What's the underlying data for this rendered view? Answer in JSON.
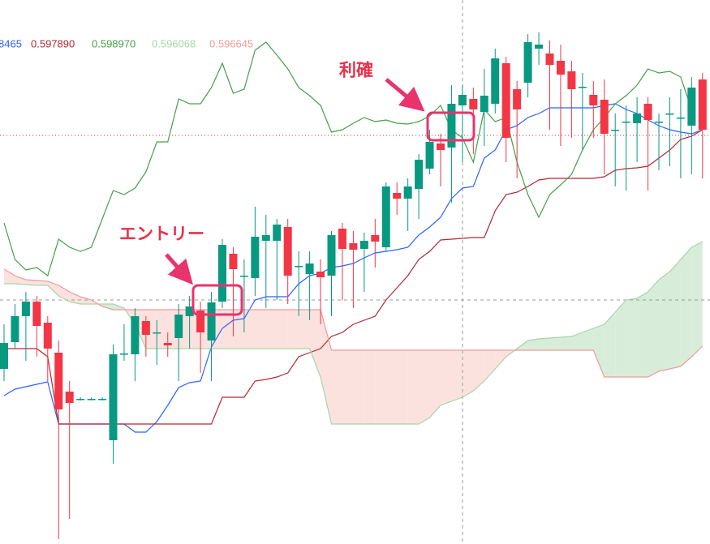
{
  "chart_data": {
    "type": "candlestick",
    "ylim": [
      0.59329,
      0.6
    ],
    "up_color": "#089981",
    "down_color": "#f23645",
    "open": [
      0.59545,
      0.59578,
      0.5961,
      0.59628,
      0.59602,
      0.59565,
      0.59517,
      0.59508,
      0.59508,
      0.59508,
      0.59457,
      0.59564,
      0.59563,
      0.59604,
      0.5959,
      0.59577,
      0.59583,
      0.5961,
      0.59617,
      0.5958,
      0.59628,
      0.59687,
      0.5966,
      0.59657,
      0.59703,
      0.59703,
      0.5972,
      0.59672,
      0.59662,
      0.59665,
      0.5966,
      0.59718,
      0.597,
      0.59693,
      0.5971,
      0.59695,
      0.59762,
      0.59755,
      0.59767,
      0.59792,
      0.59823,
      0.59818,
      0.5987,
      0.59878,
      0.59862,
      0.59872,
      0.59922,
      0.5989,
      0.59898,
      0.5994,
      0.59934,
      0.59925,
      0.59912,
      0.59893,
      0.59883,
      0.59877,
      0.5984,
      0.5985,
      0.59848,
      0.59872,
      0.5985,
      0.5986,
      0.59855,
      0.59845,
      0.59902
    ],
    "high": [
      0.596,
      0.59625,
      0.5964,
      0.59635,
      0.5961,
      0.5958,
      0.5953,
      0.5951,
      0.5951,
      0.5951,
      0.59575,
      0.596,
      0.5962,
      0.5961,
      0.59605,
      0.5959,
      0.59625,
      0.59635,
      0.59628,
      0.5964,
      0.59705,
      0.59695,
      0.5968,
      0.59745,
      0.59735,
      0.5973,
      0.5973,
      0.5969,
      0.5969,
      0.5968,
      0.59715,
      0.59725,
      0.59715,
      0.59713,
      0.5973,
      0.59775,
      0.59775,
      0.5978,
      0.5981,
      0.5984,
      0.59835,
      0.59895,
      0.59895,
      0.59892,
      0.59915,
      0.5994,
      0.5993,
      0.599,
      0.59958,
      0.5996,
      0.5995,
      0.59945,
      0.59925,
      0.5991,
      0.599,
      0.59902,
      0.5986,
      0.5987,
      0.5988,
      0.5988,
      0.5986,
      0.5988,
      0.5989,
      0.59905,
      0.5991
    ],
    "low": [
      0.5953,
      0.5957,
      0.59555,
      0.5956,
      0.5953,
      0.59335,
      0.5936,
      0.59506,
      0.59506,
      0.59506,
      0.59428,
      0.59555,
      0.5953,
      0.5956,
      0.5955,
      0.5956,
      0.5953,
      0.5957,
      0.5954,
      0.5953,
      0.5962,
      0.59585,
      0.5959,
      0.59635,
      0.5962,
      0.5963,
      0.59625,
      0.5961,
      0.59605,
      0.596,
      0.5961,
      0.5963,
      0.5962,
      0.5964,
      0.5967,
      0.5969,
      0.59735,
      0.59715,
      0.5973,
      0.59785,
      0.5977,
      0.5975,
      0.598,
      0.5981,
      0.5982,
      0.5986,
      0.598,
      0.5978,
      0.5988,
      0.5992,
      0.5984,
      0.5982,
      0.5983,
      0.59815,
      0.5983,
      0.59785,
      0.5977,
      0.59765,
      0.598,
      0.59765,
      0.5979,
      0.59795,
      0.5978,
      0.59785,
      0.5978
    ],
    "close": [
      0.59577,
      0.5961,
      0.59628,
      0.59598,
      0.5957,
      0.59495,
      0.59503,
      0.59508,
      0.59508,
      0.59508,
      0.59563,
      0.59564,
      0.5961,
      0.59587,
      0.5959,
      0.59574,
      0.59612,
      0.59622,
      0.5959,
      0.59627,
      0.59698,
      0.59668,
      0.5966,
      0.59708,
      0.5971,
      0.59723,
      0.5966,
      0.59672,
      0.59675,
      0.59658,
      0.5971,
      0.59693,
      0.59692,
      0.59703,
      0.59702,
      0.5977,
      0.59755,
      0.5977,
      0.59803,
      0.59825,
      0.59815,
      0.59872,
      0.59883,
      0.59865,
      0.59882,
      0.59928,
      0.5983,
      0.59865,
      0.59948,
      0.59945,
      0.5992,
      0.59908,
      0.5989,
      0.59893,
      0.5987,
      0.59835,
      0.5984,
      0.5985,
      0.5986,
      0.59852,
      0.5985,
      0.5986,
      0.59855,
      0.59892,
      0.5984
    ],
    "price_line": 0.59833,
    "price_line_color": "#d32f2f",
    "series": [
      {
        "label": "8465",
        "color": "#2962ff",
        "values": [
          0.59512,
          0.5952,
          0.59523,
          0.59526,
          0.59529,
          0.59477,
          0.59477,
          0.59477,
          0.59477,
          0.59477,
          0.59477,
          0.59477,
          0.59467,
          0.59467,
          0.5948,
          0.595,
          0.59522,
          0.59528,
          0.5953,
          0.59572,
          0.59595,
          0.59605,
          0.59607,
          0.5963,
          0.59634,
          0.59634,
          0.59634,
          0.5965,
          0.5966,
          0.59663,
          0.5967,
          0.59672,
          0.59675,
          0.59682,
          0.59688,
          0.5969,
          0.59692,
          0.59695,
          0.5971,
          0.5972,
          0.59732,
          0.59755,
          0.59768,
          0.5977,
          0.59805,
          0.59815,
          0.5984,
          0.59845,
          0.59855,
          0.5986,
          0.59867,
          0.59867,
          0.59867,
          0.59867,
          0.59867,
          0.5987,
          0.59872,
          0.59865,
          0.5986,
          0.59852,
          0.59845,
          0.5984,
          0.59837,
          0.59835,
          0.5984
        ]
      },
      {
        "label": "0.597890",
        "color": "#b22833",
        "values": [
          0.5957,
          0.5957,
          0.5957,
          0.5957,
          0.5956,
          0.59477,
          0.59477,
          0.59477,
          0.59477,
          0.59477,
          0.59477,
          0.59477,
          0.59477,
          0.59477,
          0.59477,
          0.59477,
          0.59477,
          0.59477,
          0.59477,
          0.59477,
          0.5951,
          0.5951,
          0.5951,
          0.5953,
          0.59532,
          0.59535,
          0.5954,
          0.5956,
          0.59565,
          0.5957,
          0.59585,
          0.5959,
          0.596,
          0.59605,
          0.5961,
          0.5963,
          0.59645,
          0.5966,
          0.5968,
          0.5969,
          0.59704,
          0.59705,
          0.59706,
          0.59707,
          0.59707,
          0.5974,
          0.5976,
          0.59763,
          0.5977,
          0.59778,
          0.5978,
          0.5978,
          0.5978,
          0.5978,
          0.5978,
          0.59782,
          0.5979,
          0.59792,
          0.59793,
          0.59795,
          0.59805,
          0.59815,
          0.59828,
          0.59832,
          0.5984
        ]
      },
      {
        "label": "0.598970",
        "color": "#43a047",
        "values": [
          0.59725,
          0.5968,
          0.59667,
          0.5967,
          0.5966,
          0.59705,
          0.59695,
          0.5969,
          0.59695,
          0.5973,
          0.59765,
          0.5976,
          0.59768,
          0.59788,
          0.59825,
          0.59825,
          0.59878,
          0.59872,
          0.59872,
          0.59892,
          0.59922,
          0.59885,
          0.5989,
          0.59938,
          0.59948,
          0.59932,
          0.59915,
          0.59892,
          0.59882,
          0.5987,
          0.59837,
          0.5984,
          0.59848,
          0.59855,
          0.5985,
          0.59852,
          0.59848,
          0.59847,
          0.5985,
          0.59857,
          0.5987,
          0.5984,
          0.5983,
          0.598,
          0.59865,
          0.5985,
          0.59855,
          0.598,
          0.5976,
          0.59732,
          0.5976,
          0.59772,
          0.59785,
          0.59815,
          0.5984,
          0.59855,
          0.59872,
          0.59882,
          0.59895,
          0.59915,
          0.5991,
          0.59912,
          0.59905,
          0.59865,
          null
        ]
      },
      {
        "label": "0.596068",
        "color": "#a5d6a7",
        "values": [
          0.5965,
          0.5965,
          0.59649,
          0.59648,
          0.59648,
          0.59635,
          0.59628,
          0.59625,
          0.59625,
          0.59625,
          0.59625,
          0.5962,
          0.596,
          0.5957,
          0.5957,
          0.5957,
          0.5957,
          0.5957,
          0.5957,
          0.5957,
          0.5957,
          0.5957,
          0.5957,
          0.5957,
          0.5957,
          0.5957,
          0.5957,
          0.5957,
          0.5957,
          0.59535,
          0.59477,
          0.59477,
          0.59477,
          0.59477,
          0.59477,
          0.59477,
          0.59477,
          0.59477,
          0.59477,
          0.59485,
          0.595,
          0.59505,
          0.5951,
          0.59518,
          0.5953,
          0.59545,
          0.5956,
          0.5957,
          0.5958,
          0.59582,
          0.59583,
          0.59584,
          0.59585,
          0.5959,
          0.59595,
          0.596,
          0.59615,
          0.5963,
          0.59632,
          0.5964,
          0.59655,
          0.59665,
          0.5968,
          0.59695,
          0.59702
        ]
      },
      {
        "label": "0.596645",
        "color": "#ef9a9a",
        "values": [
          0.59668,
          0.5966,
          0.59655,
          0.59654,
          0.59653,
          0.59648,
          0.5964,
          0.59634,
          0.5963,
          0.59622,
          0.59618,
          0.59618,
          0.59618,
          0.59618,
          0.59618,
          0.59618,
          0.59618,
          0.59618,
          0.59618,
          0.59618,
          0.59618,
          0.59618,
          0.59618,
          0.59618,
          0.59618,
          0.59618,
          0.59618,
          0.59618,
          0.59618,
          0.59618,
          0.59568,
          0.59568,
          0.59568,
          0.59568,
          0.59568,
          0.59568,
          0.59568,
          0.59568,
          0.59568,
          0.59568,
          0.59568,
          0.59568,
          0.59568,
          0.59568,
          0.59568,
          0.59568,
          0.59568,
          0.59568,
          0.59568,
          0.59568,
          0.59568,
          0.59568,
          0.59568,
          0.59568,
          0.59568,
          0.59535,
          0.59535,
          0.59535,
          0.59535,
          0.59535,
          0.59542,
          0.59545,
          0.59548,
          0.5956,
          0.59573
        ]
      }
    ],
    "cloud_up_color": "#c8e6c9",
    "cloud_down_color": "#fbd5d2",
    "annotations": [
      {
        "text": "エントリー"
      },
      {
        "text": "利確"
      }
    ]
  }
}
